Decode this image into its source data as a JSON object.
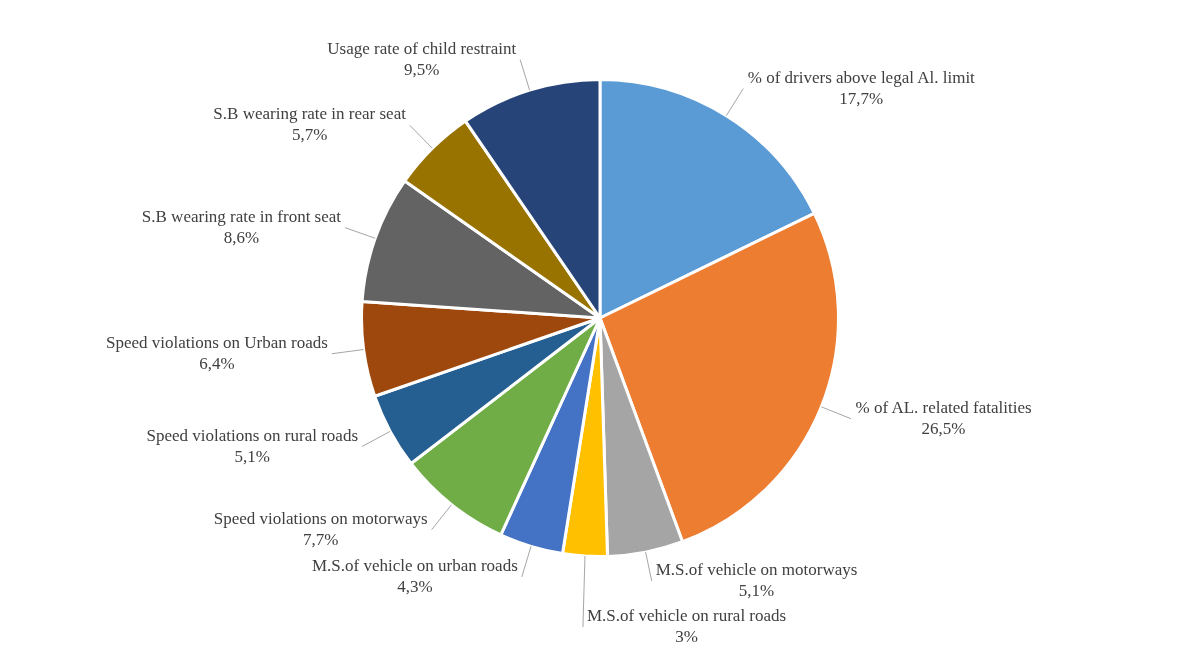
{
  "chart_data": {
    "type": "pie",
    "categories": [
      "% of drivers above legal Al. limit",
      "% of AL. related fatalities",
      "M.S.of vehicle on motorways",
      "M.S.of vehicle on rural roads",
      "M.S.of vehicle on urban roads",
      "Speed violations on motorways",
      "Speed violations on rural roads",
      "Speed violations on Urban roads",
      "S.B wearing rate in front seat",
      "S.B wearing rate in rear seat",
      "Usage rate of child restraint"
    ],
    "values": [
      17.7,
      26.5,
      5.1,
      3,
      4.3,
      7.7,
      5.1,
      6.4,
      8.6,
      5.7,
      9.5
    ],
    "value_labels": [
      "17,7%",
      "26,5%",
      "5,1%",
      "3%",
      "4,3%",
      "7,7%",
      "5,1%",
      "6,4%",
      "8,6%",
      "5,7%",
      "9,5%"
    ],
    "colors": [
      "#5b9bd5",
      "#ed7d31",
      "#a5a5a5",
      "#ffc000",
      "#4472c4",
      "#70ad47",
      "#255e91",
      "#9e480e",
      "#636363",
      "#997300",
      "#264478"
    ],
    "legend": false
  }
}
